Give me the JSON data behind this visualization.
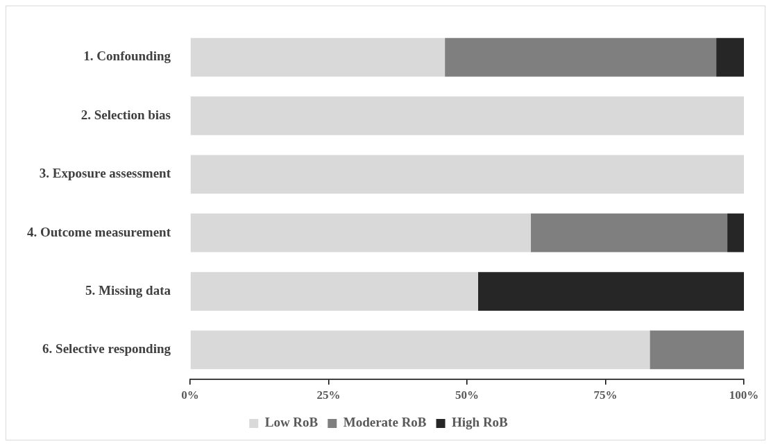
{
  "chart_data": {
    "type": "bar",
    "orientation": "horizontal",
    "stacked": true,
    "categories": [
      "1. Confounding",
      "2. Selection bias",
      "3. Exposure assessment",
      "4. Outcome measurement",
      "5. Missing data",
      "6. Selective responding"
    ],
    "series": [
      {
        "name": "Low RoB",
        "color": "#d9d9d9",
        "values": [
          46,
          100,
          100,
          61.5,
          52,
          83
        ]
      },
      {
        "name": "Moderate RoB",
        "color": "#7f7f7f",
        "values": [
          49,
          0,
          0,
          35.5,
          0,
          17
        ]
      },
      {
        "name": "High RoB",
        "color": "#262626",
        "values": [
          5,
          0,
          0,
          3,
          48,
          0
        ]
      }
    ],
    "xlim": [
      0,
      100
    ],
    "xticks": [
      {
        "value": 0,
        "label": "0%"
      },
      {
        "value": 25,
        "label": "25%"
      },
      {
        "value": 50,
        "label": "50%"
      },
      {
        "value": 75,
        "label": "75%"
      },
      {
        "value": 100,
        "label": "100%"
      }
    ],
    "grid": false,
    "legend": "bottom"
  }
}
